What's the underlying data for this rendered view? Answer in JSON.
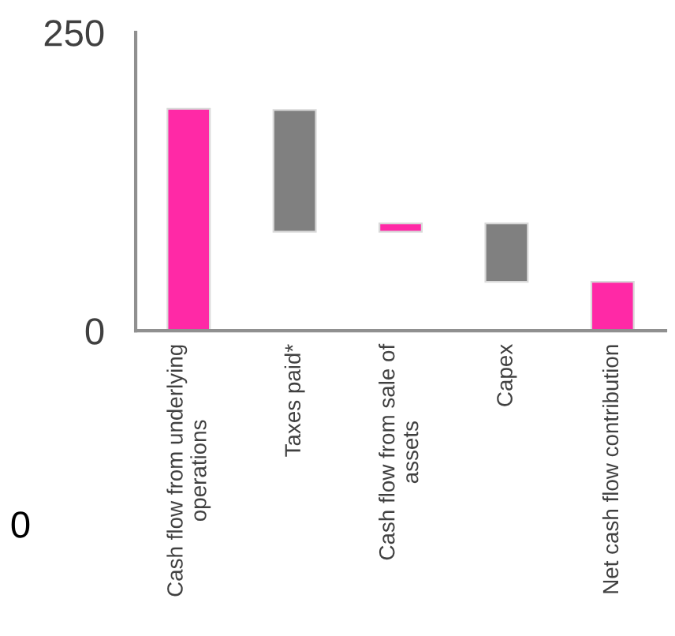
{
  "chart_data": {
    "type": "bar",
    "categories": [
      "Cash flow from underlying\noperations",
      "Taxes paid*",
      "Cash flow from sale of\nassets",
      "Capex",
      "Net cash flow contribution"
    ],
    "values": [
      186,
      102,
      7,
      49,
      41
    ],
    "base": [
      0,
      83,
      83,
      41,
      0
    ],
    "colors": [
      "#ff29a6",
      "#808080",
      "#ff29a6",
      "#808080",
      "#ff29a6"
    ],
    "ylim": [
      0,
      250
    ],
    "yticks": [
      0,
      250
    ],
    "grid": false,
    "legend": false,
    "annotations": [
      "0"
    ]
  }
}
